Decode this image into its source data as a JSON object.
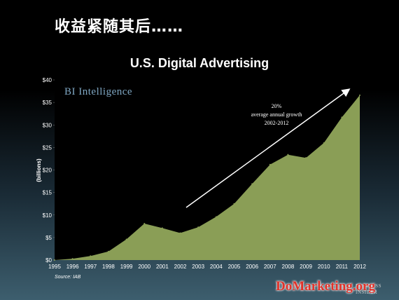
{
  "slide": {
    "heading": "收益紧随其后……"
  },
  "chart_data": {
    "type": "area",
    "title": "U.S. Digital Advertising",
    "ylabel": "(billions)",
    "xlabel": "",
    "x": [
      1995,
      1996,
      1997,
      1998,
      1999,
      2000,
      2001,
      2002,
      2003,
      2004,
      2005,
      2006,
      2007,
      2008,
      2009,
      2010,
      2011,
      2012
    ],
    "values": [
      0,
      0.3,
      0.9,
      1.9,
      4.6,
      8.1,
      7.1,
      6.0,
      7.3,
      9.6,
      12.5,
      16.9,
      21.2,
      23.4,
      22.7,
      26.0,
      31.7,
      36.6
    ],
    "ylim": [
      0,
      40
    ],
    "yticks": [
      "$0",
      "$5",
      "$10",
      "$15",
      "$20",
      "$25",
      "$30",
      "$35",
      "$40"
    ],
    "ytick_values": [
      0,
      5,
      10,
      15,
      20,
      25,
      30,
      35,
      40
    ],
    "xticks": [
      "1995",
      "1996",
      "1997",
      "1998",
      "1999",
      "2000",
      "2001",
      "2002",
      "2003",
      "2004",
      "2005",
      "2006",
      "2007",
      "2008",
      "2009",
      "2010",
      "2011",
      "2012"
    ],
    "fill_color": "#8a9e56",
    "plot_background": "#000000",
    "annotation": {
      "lines": [
        "20%",
        "average annual growth",
        "2002-2012"
      ]
    },
    "logo": "BI Intelligence",
    "source": "Source: IAB",
    "corner_logo": [
      "BUSINESS",
      "INSIDER"
    ]
  },
  "watermark": "DoMarketing.org"
}
